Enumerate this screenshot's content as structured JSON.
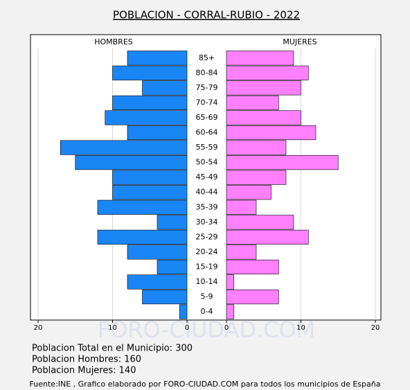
{
  "chart_data": {
    "type": "pyramid",
    "title": "POBLACION - CORRAL-RUBIO - 2022",
    "categories": [
      "85+",
      "80-84",
      "75-79",
      "70-74",
      "65-69",
      "60-64",
      "55-59",
      "50-54",
      "45-49",
      "40-44",
      "35-39",
      "30-34",
      "25-29",
      "20-24",
      "15-19",
      "10-14",
      "5-9",
      "0-4"
    ],
    "series": [
      {
        "name": "HOMBRES",
        "color": "#1a86f5",
        "values": [
          8,
          10,
          6,
          10,
          11,
          8,
          17,
          15,
          10,
          10,
          12,
          4,
          12,
          8,
          4,
          8,
          6,
          1
        ]
      },
      {
        "name": "MUJERES",
        "color": "#ff80ff",
        "values": [
          9,
          11,
          10,
          7,
          10,
          12,
          8,
          15,
          8,
          6,
          4,
          9,
          11,
          4,
          7,
          1,
          7,
          1
        ]
      }
    ],
    "xlim": [
      0,
      20
    ],
    "xticks": [
      0,
      10,
      20
    ],
    "grid": true,
    "watermark": "FORO-CIUDAD.COM",
    "notes": [
      "Poblacion Total en el Municipio: 300",
      "Poblacion Hombres: 160",
      "Poblacion Mujeres: 140"
    ],
    "source": "Fuente:INE , Grafico elaborado por FORO-CIUDAD.COM para todos los municipios de España"
  }
}
